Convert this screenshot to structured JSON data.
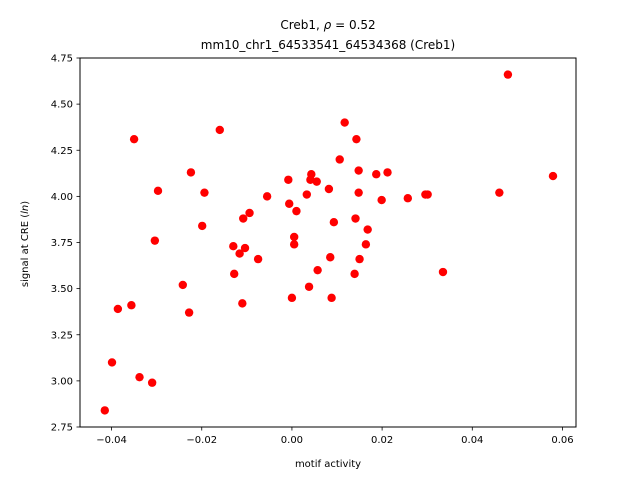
{
  "chart_data": {
    "type": "scatter",
    "title_line1": "Creb1, ρ = 0.52",
    "title_line2": "mm10_chr1_64533541_64534368 (Creb1)",
    "xlabel": "motif activity",
    "ylabel": "signal at CRE (ln)",
    "xlim": [
      -0.047,
      0.063
    ],
    "ylim": [
      2.75,
      4.75
    ],
    "xticks": [
      -0.04,
      -0.02,
      0.0,
      0.02,
      0.04,
      0.06
    ],
    "xtick_labels": [
      "−0.04",
      "−0.02",
      "0.00",
      "0.02",
      "0.04",
      "0.06"
    ],
    "yticks": [
      2.75,
      3.0,
      3.25,
      3.5,
      3.75,
      4.0,
      4.25,
      4.5,
      4.75
    ],
    "ytick_labels": [
      "2.75",
      "3.00",
      "3.25",
      "3.50",
      "3.75",
      "4.00",
      "4.25",
      "4.50",
      "4.75"
    ],
    "grid": false,
    "marker_color": "#ff0000",
    "points": [
      {
        "x": -0.0415,
        "y": 2.84
      },
      {
        "x": -0.0399,
        "y": 3.1
      },
      {
        "x": -0.0386,
        "y": 3.39
      },
      {
        "x": -0.0356,
        "y": 3.41
      },
      {
        "x": -0.035,
        "y": 4.31
      },
      {
        "x": -0.0338,
        "y": 3.02
      },
      {
        "x": -0.031,
        "y": 2.99
      },
      {
        "x": -0.0304,
        "y": 3.76
      },
      {
        "x": -0.0297,
        "y": 4.03
      },
      {
        "x": -0.0242,
        "y": 3.52
      },
      {
        "x": -0.0228,
        "y": 3.37
      },
      {
        "x": -0.0224,
        "y": 4.13
      },
      {
        "x": -0.0199,
        "y": 3.84
      },
      {
        "x": -0.0194,
        "y": 4.02
      },
      {
        "x": -0.016,
        "y": 4.36
      },
      {
        "x": -0.013,
        "y": 3.73
      },
      {
        "x": -0.0128,
        "y": 3.58
      },
      {
        "x": -0.0116,
        "y": 3.69
      },
      {
        "x": -0.011,
        "y": 3.42
      },
      {
        "x": -0.0108,
        "y": 3.88
      },
      {
        "x": -0.0104,
        "y": 3.72
      },
      {
        "x": -0.0094,
        "y": 3.91
      },
      {
        "x": -0.0075,
        "y": 3.66
      },
      {
        "x": -0.0055,
        "y": 4.0
      },
      {
        "x": -0.0008,
        "y": 4.09
      },
      {
        "x": -0.0006,
        "y": 3.96
      },
      {
        "x": 0.0,
        "y": 3.45
      },
      {
        "x": 0.0005,
        "y": 3.78
      },
      {
        "x": 0.0005,
        "y": 3.74
      },
      {
        "x": 0.001,
        "y": 3.92
      },
      {
        "x": 0.0033,
        "y": 4.01
      },
      {
        "x": 0.0038,
        "y": 3.51
      },
      {
        "x": 0.0041,
        "y": 4.09
      },
      {
        "x": 0.0043,
        "y": 4.12
      },
      {
        "x": 0.0055,
        "y": 4.08
      },
      {
        "x": 0.0057,
        "y": 3.6
      },
      {
        "x": 0.0082,
        "y": 4.04
      },
      {
        "x": 0.0085,
        "y": 3.67
      },
      {
        "x": 0.0088,
        "y": 3.45
      },
      {
        "x": 0.0093,
        "y": 3.86
      },
      {
        "x": 0.0106,
        "y": 4.2
      },
      {
        "x": 0.0117,
        "y": 4.4
      },
      {
        "x": 0.0139,
        "y": 3.58
      },
      {
        "x": 0.0141,
        "y": 3.88
      },
      {
        "x": 0.0143,
        "y": 4.31
      },
      {
        "x": 0.0148,
        "y": 4.14
      },
      {
        "x": 0.0148,
        "y": 4.02
      },
      {
        "x": 0.015,
        "y": 3.66
      },
      {
        "x": 0.0164,
        "y": 3.74
      },
      {
        "x": 0.0168,
        "y": 3.82
      },
      {
        "x": 0.0187,
        "y": 4.12
      },
      {
        "x": 0.0199,
        "y": 3.98
      },
      {
        "x": 0.0212,
        "y": 4.13
      },
      {
        "x": 0.0257,
        "y": 3.99
      },
      {
        "x": 0.0296,
        "y": 4.01
      },
      {
        "x": 0.0301,
        "y": 4.01
      },
      {
        "x": 0.0335,
        "y": 3.59
      },
      {
        "x": 0.046,
        "y": 4.02
      },
      {
        "x": 0.0479,
        "y": 4.66
      },
      {
        "x": 0.0579,
        "y": 4.11
      }
    ]
  }
}
